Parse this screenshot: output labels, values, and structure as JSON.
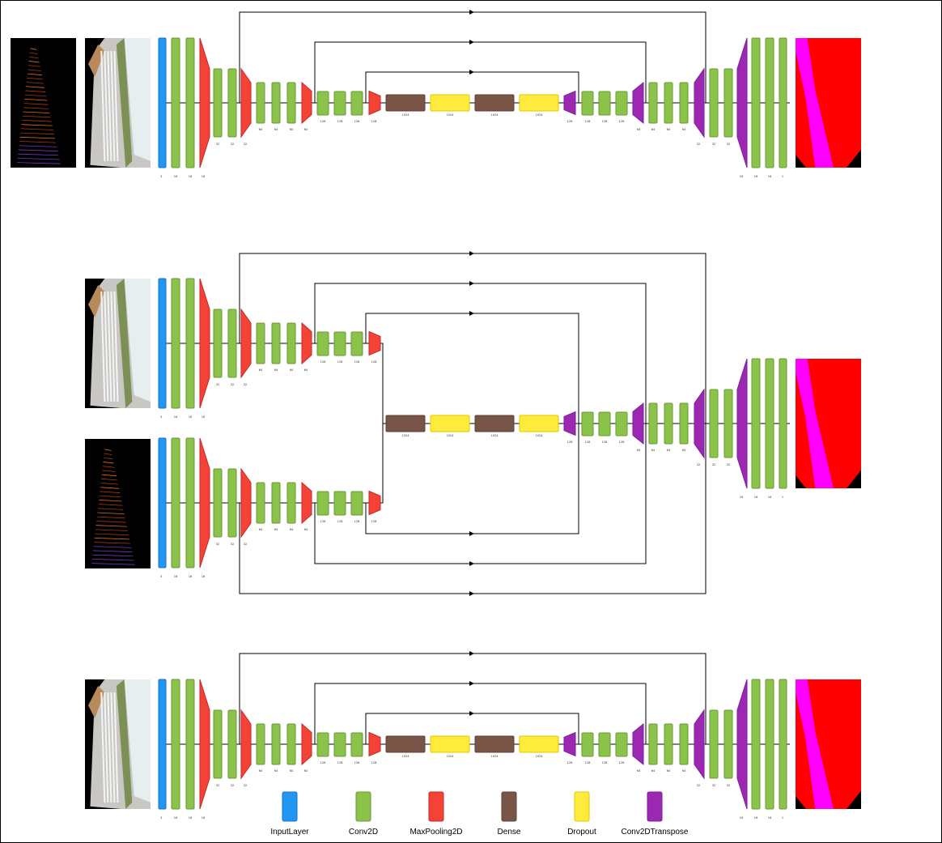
{
  "legend": [
    {
      "key": "input",
      "label": "InputLayer",
      "color": "#2196F3",
      "stroke": "#1a73c4"
    },
    {
      "key": "conv",
      "label": "Conv2D",
      "color": "#8BC34A",
      "stroke": "#6a9a34"
    },
    {
      "key": "pool",
      "label": "MaxPooling2D",
      "color": "#F44336",
      "stroke": "#c62828"
    },
    {
      "key": "dense",
      "label": "Dense",
      "color": "#795548",
      "stroke": "#5d4037"
    },
    {
      "key": "dropout",
      "label": "Dropout",
      "color": "#FFEB3B",
      "stroke": "#e0c800"
    },
    {
      "key": "deconv",
      "label": "Conv2DTranspose",
      "color": "#9C27B0",
      "stroke": "#7b1fa2"
    }
  ],
  "colors": {
    "line": "#000000",
    "segmentation_background": "#FF0000",
    "segmentation_lane": "#FF00FF",
    "segmentation_corner": "#000000",
    "image_background": "#000000"
  },
  "models": [
    {
      "id": "single-lidar-camera",
      "encoder_sizes": [
        "3",
        "16",
        "16",
        "16",
        "32",
        "32",
        "32",
        "64",
        "64",
        "64",
        "64",
        "128",
        "128",
        "128",
        "128"
      ],
      "bottleneck_sizes": [
        "1024",
        "1024",
        "1024",
        "1024"
      ],
      "decoder_sizes": [
        "128",
        "128",
        "128",
        "128",
        "64",
        "64",
        "64",
        "64",
        "32",
        "32",
        "32",
        "16",
        "16",
        "16",
        "1"
      ]
    },
    {
      "id": "dual-branch-fusion",
      "encoder_sizes": [
        "3",
        "16",
        "16",
        "16",
        "32",
        "32",
        "32",
        "64",
        "64",
        "64",
        "64",
        "128",
        "128",
        "128",
        "128"
      ],
      "lidar_encoder_sizes": [
        "3",
        "16",
        "16",
        "16",
        "32",
        "32",
        "32",
        "64",
        "64",
        "64",
        "64",
        "128",
        "128",
        "128",
        "128"
      ],
      "bottleneck_sizes": [
        "1024",
        "1024",
        "1024",
        "1024"
      ],
      "decoder_sizes": [
        "128",
        "128",
        "128",
        "128",
        "64",
        "64",
        "64",
        "64",
        "32",
        "32",
        "32",
        "16",
        "16",
        "16",
        "1"
      ]
    },
    {
      "id": "single-camera",
      "encoder_sizes": [
        "3",
        "16",
        "16",
        "16",
        "32",
        "32",
        "32",
        "64",
        "64",
        "64",
        "64",
        "128",
        "128",
        "128",
        "128"
      ],
      "bottleneck_sizes": [
        "1024",
        "1024",
        "1024",
        "1024"
      ],
      "decoder_sizes": [
        "128",
        "128",
        "128",
        "128",
        "64",
        "64",
        "64",
        "64",
        "32",
        "32",
        "32",
        "16",
        "16",
        "16",
        "1"
      ]
    }
  ]
}
